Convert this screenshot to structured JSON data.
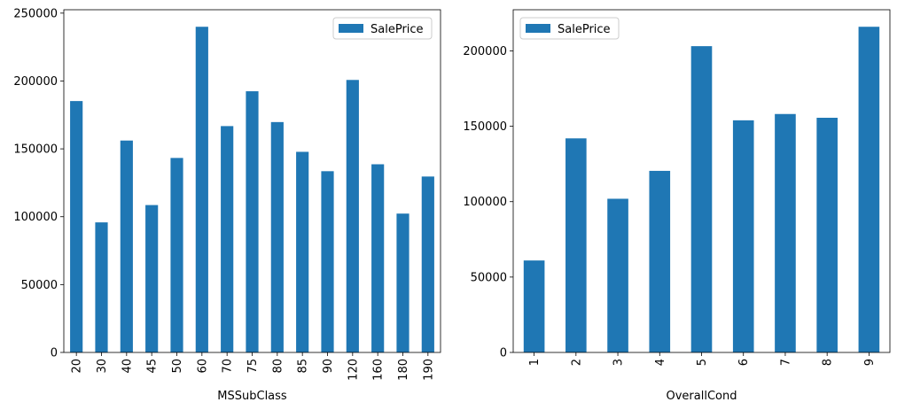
{
  "chart_data": [
    {
      "type": "bar",
      "title": "",
      "xlabel": "MSSubClass",
      "ylabel": "",
      "categories": [
        "20",
        "30",
        "40",
        "45",
        "50",
        "60",
        "70",
        "75",
        "80",
        "85",
        "90",
        "120",
        "160",
        "180",
        "190"
      ],
      "series": [
        {
          "name": "SalePrice",
          "color": "#1f77b4",
          "values": [
            185225,
            95830,
            156125,
            108592,
            143303,
            239948,
            166773,
            192437,
            169737,
            147810,
            133541,
            200780,
            138648,
            102300,
            129613
          ]
        }
      ],
      "ylim": [
        0,
        252500
      ],
      "yticks": [
        0,
        50000,
        100000,
        150000,
        200000,
        250000
      ],
      "grid": false,
      "legend_position": "top-right",
      "xtick_rotation": 90
    },
    {
      "type": "bar",
      "title": "",
      "xlabel": "OverallCond",
      "ylabel": "",
      "categories": [
        "1",
        "2",
        "3",
        "4",
        "5",
        "6",
        "7",
        "8",
        "9"
      ],
      "series": [
        {
          "name": "SalePrice",
          "color": "#1f77b4",
          "values": [
            61000,
            141987,
            101929,
            120438,
            203146,
            153962,
            158145,
            155651,
            216004
          ]
        }
      ],
      "ylim": [
        0,
        227300
      ],
      "yticks": [
        0,
        50000,
        100000,
        150000,
        200000
      ],
      "grid": false,
      "legend_position": "top-left",
      "xtick_rotation": 90
    }
  ]
}
